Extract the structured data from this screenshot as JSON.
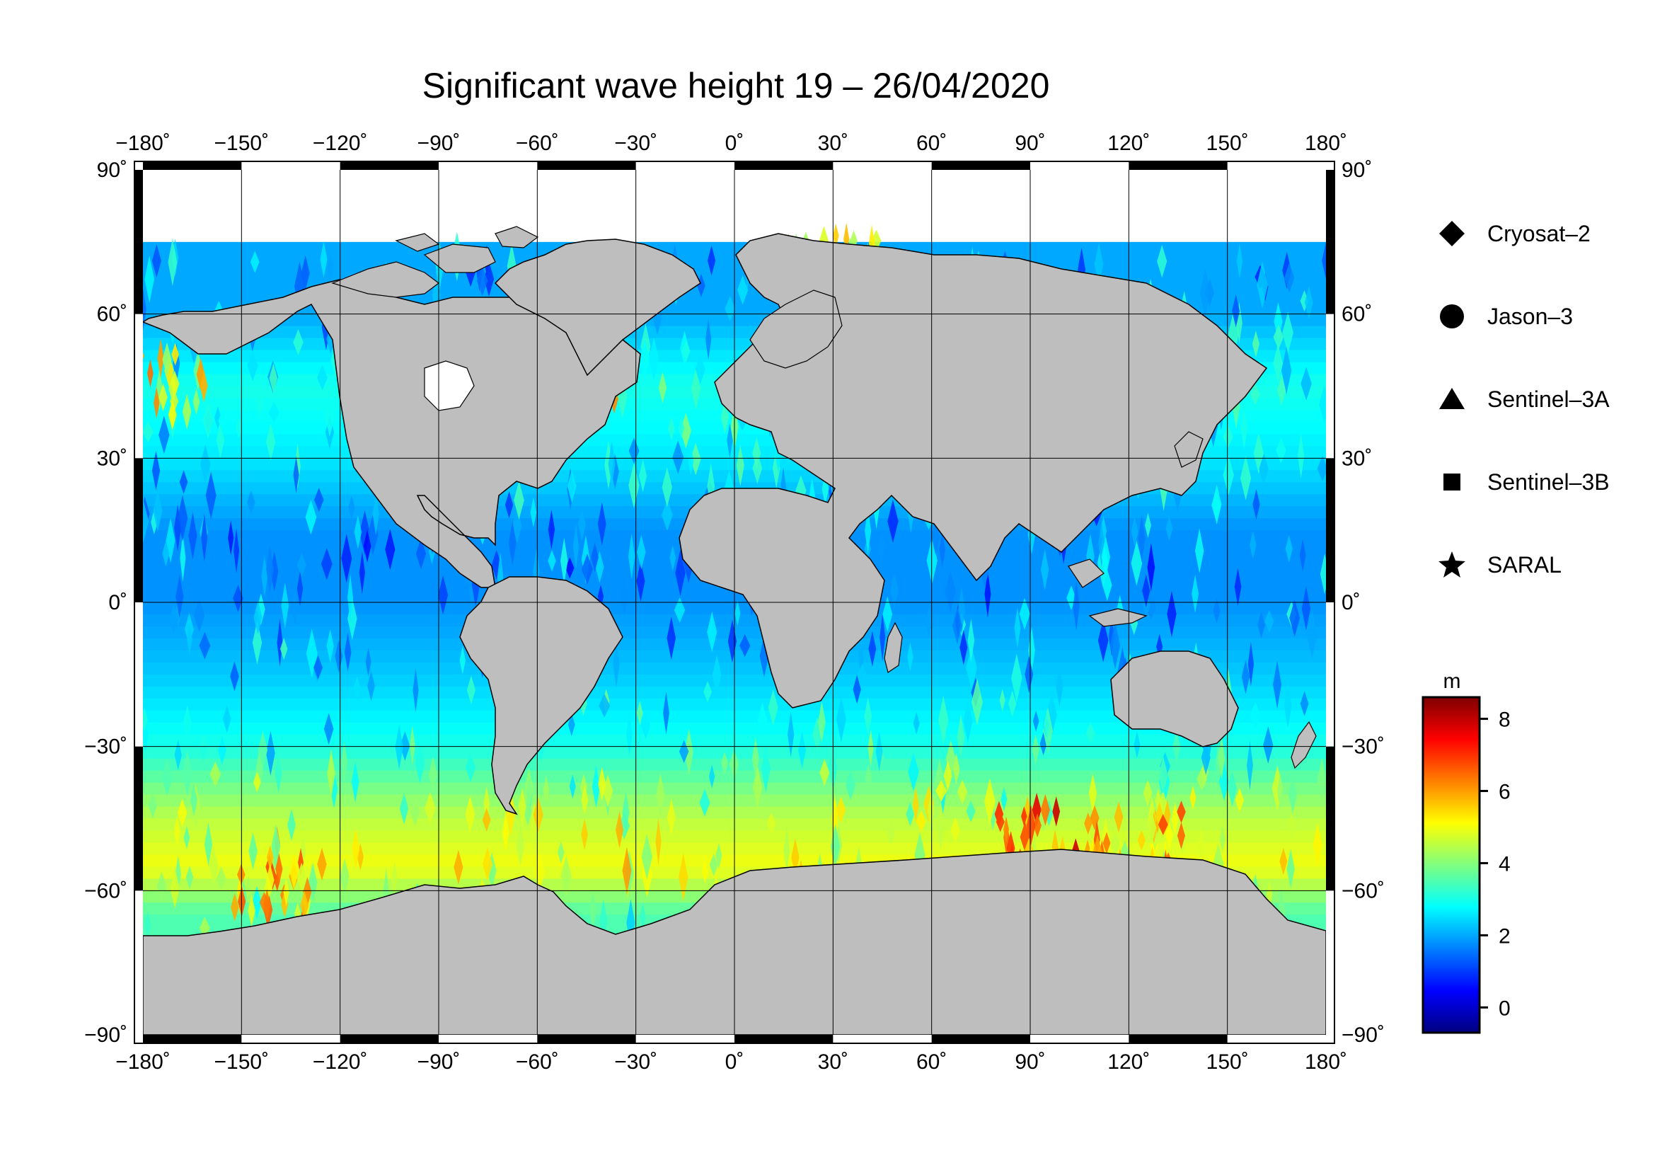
{
  "title": "Significant wave height 19 – 26/04/2020",
  "map": {
    "projection": "equirectangular",
    "lon_range": [
      -180,
      180
    ],
    "lat_range": [
      -90,
      90
    ],
    "lon_ticks": [
      "−180˚",
      "−150˚",
      "−120˚",
      "−90˚",
      "−60˚",
      "−30˚",
      "0˚",
      "30˚",
      "60˚",
      "90˚",
      "120˚",
      "150˚",
      "180˚"
    ],
    "lat_ticks": [
      "90˚",
      "60˚",
      "30˚",
      "0˚",
      "−30˚",
      "−60˚",
      "−90˚"
    ],
    "gridlines": true,
    "land_color": "#bebebe",
    "ice_color": "#ffffff"
  },
  "legend": {
    "items": [
      {
        "symbol": "diamond",
        "label": "Cryosat–2"
      },
      {
        "symbol": "circle",
        "label": "Jason–3"
      },
      {
        "symbol": "triangle",
        "label": "Sentinel–3A"
      },
      {
        "symbol": "square",
        "label": "Sentinel–3B"
      },
      {
        "symbol": "star",
        "label": "SARAL"
      }
    ]
  },
  "colorbar": {
    "unit": "m",
    "ticks": [
      "0",
      "2",
      "4",
      "6",
      "8"
    ],
    "range": [
      -0.7,
      8.6
    ],
    "colormap": [
      "#00007f",
      "#0000ff",
      "#007fff",
      "#00ffff",
      "#7fff7f",
      "#ffff00",
      "#ff7f00",
      "#ff0000",
      "#7f0000"
    ]
  },
  "chart_data": {
    "type": "heatmap",
    "title": "Significant wave height 19 – 26/04/2020",
    "variable": "Significant wave height",
    "unit": "m",
    "x_range": [
      -180,
      180
    ],
    "y_range": [
      -90,
      90
    ],
    "color_range": [
      0,
      8
    ],
    "satellites": [
      "Cryosat–2",
      "Jason–3",
      "Sentinel–3A",
      "Sentinel–3B",
      "SARAL"
    ],
    "zonal_profile": [
      {
        "lat": 72,
        "swh": 2.0
      },
      {
        "lat": 60,
        "swh": 2.0
      },
      {
        "lat": 45,
        "swh": 3.0
      },
      {
        "lat": 30,
        "swh": 2.6
      },
      {
        "lat": 15,
        "swh": 1.8
      },
      {
        "lat": 0,
        "swh": 1.8
      },
      {
        "lat": -15,
        "swh": 2.3
      },
      {
        "lat": -30,
        "swh": 3.0
      },
      {
        "lat": -45,
        "swh": 4.5
      },
      {
        "lat": -55,
        "swh": 5.0
      },
      {
        "lat": -65,
        "swh": 3.5
      }
    ],
    "peak_regions": [
      {
        "lon": 95,
        "lat": -50,
        "swh": 8.0
      },
      {
        "lon": 125,
        "lat": -50,
        "swh": 7.0
      },
      {
        "lon": -140,
        "lat": -60,
        "swh": 7.0
      },
      {
        "lon": 30,
        "lat": 70,
        "swh": 6.5
      },
      {
        "lon": -45,
        "lat": 45,
        "swh": 6.5
      },
      {
        "lon": -175,
        "lat": 45,
        "swh": 6.5
      }
    ]
  }
}
